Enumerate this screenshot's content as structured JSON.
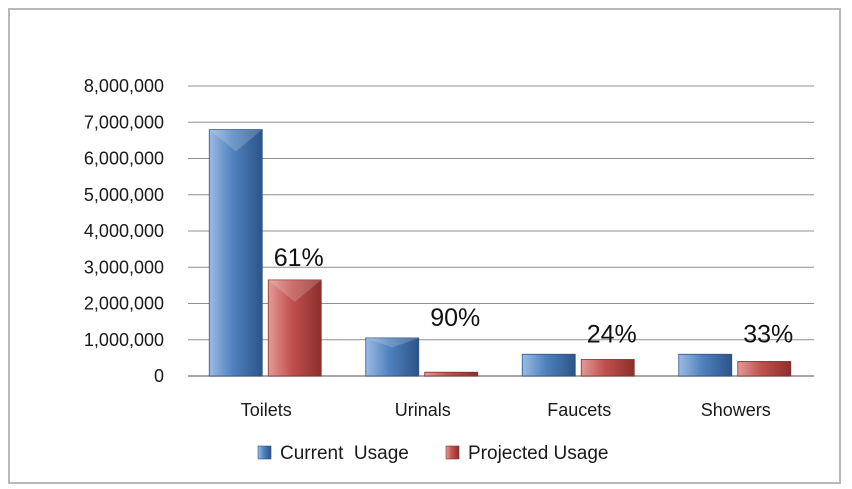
{
  "chart_data": {
    "type": "bar",
    "categories": [
      "Toilets",
      "Urinals",
      "Faucets",
      "Showers"
    ],
    "series": [
      {
        "name": "Current  Usage",
        "color": "#4a7ebb",
        "values": [
          6800000,
          1050000,
          600000,
          600000
        ]
      },
      {
        "name": "Projected Usage",
        "color": "#c0504d",
        "values": [
          2650000,
          105000,
          456000,
          402000
        ]
      }
    ],
    "annotations": [
      "61%",
      "90%",
      "24%",
      "33%"
    ],
    "y_ticks": [
      "0",
      "1,000,000",
      "2,000,000",
      "3,000,000",
      "4,000,000",
      "5,000,000",
      "6,000,000",
      "7,000,000",
      "8,000,000"
    ],
    "ylim": [
      0,
      8000000
    ],
    "grid": true,
    "legend_position": "bottom"
  }
}
